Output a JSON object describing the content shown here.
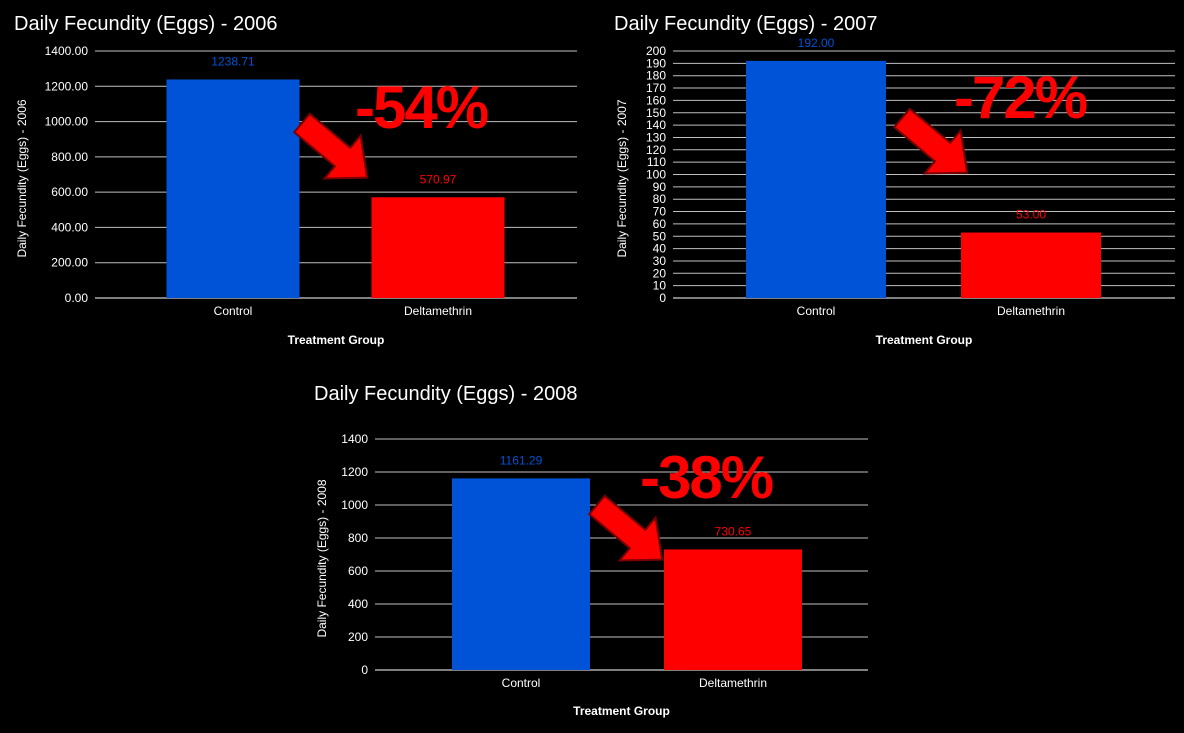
{
  "colors": {
    "control": "#0052d6",
    "treatment": "#ff0000",
    "grid": "#bfbfbf",
    "background": "#000000"
  },
  "chart_data": [
    {
      "type": "bar",
      "title": "Daily Fecundity (Eggs) - 2006",
      "xlabel": "Treatment Group",
      "ylabel": "Daily Fecundity (Eggs) - 2006",
      "categories": [
        "Control",
        "Deltamethrin"
      ],
      "values": [
        1238.71,
        570.97
      ],
      "value_labels": [
        "1238.71",
        "570.97"
      ],
      "ylim": [
        0,
        1400
      ],
      "yticks": [
        "0.00",
        "200.00",
        "400.00",
        "600.00",
        "800.00",
        "1000.00",
        "1200.00",
        "1400.00"
      ],
      "grid": true,
      "annotation": "-54%",
      "annotation_icon": "arrow-down-right-icon"
    },
    {
      "type": "bar",
      "title": "Daily Fecundity (Eggs) - 2007",
      "xlabel": "Treatment Group",
      "ylabel": "Daily Fecundity (Eggs) - 2007",
      "categories": [
        "Control",
        "Deltamethrin"
      ],
      "values": [
        192,
        53
      ],
      "value_labels": [
        "192.00",
        "53.00"
      ],
      "ylim": [
        0,
        200
      ],
      "yticks": [
        "0",
        "10",
        "20",
        "30",
        "40",
        "50",
        "60",
        "70",
        "80",
        "90",
        "100",
        "110",
        "120",
        "130",
        "140",
        "150",
        "160",
        "170",
        "180",
        "190",
        "200"
      ],
      "grid": true,
      "annotation": "-72%",
      "annotation_icon": "arrow-down-right-icon"
    },
    {
      "type": "bar",
      "title": "Daily Fecundity (Eggs) - 2008",
      "xlabel": "Treatment Group",
      "ylabel": "Daily Fecundity (Eggs) - 2008",
      "categories": [
        "Control",
        "Deltamethrin"
      ],
      "values": [
        1161.29,
        730.65
      ],
      "value_labels": [
        "1161.29",
        "730.65"
      ],
      "ylim": [
        0,
        1400
      ],
      "yticks": [
        "0",
        "200",
        "400",
        "600",
        "800",
        "1000",
        "1200",
        "1400"
      ],
      "grid": true,
      "annotation": "-38%",
      "annotation_icon": "arrow-down-right-icon"
    }
  ]
}
